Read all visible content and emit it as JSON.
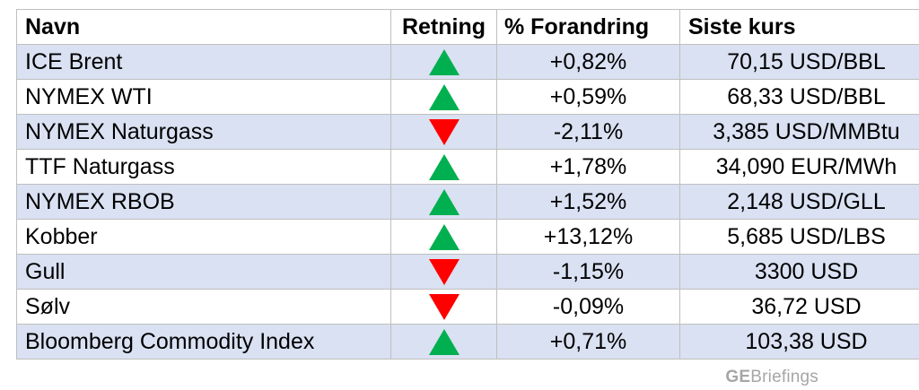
{
  "headers": {
    "name": "Navn",
    "direction": "Retning",
    "change": "% Forandring",
    "price": "Siste kurs"
  },
  "rows": [
    {
      "name": "ICE Brent",
      "direction": "up",
      "change": "+0,82%",
      "price": "70,15 USD/BBL"
    },
    {
      "name": "NYMEX WTI",
      "direction": "up",
      "change": "+0,59%",
      "price": "68,33 USD/BBL"
    },
    {
      "name": "NYMEX Naturgass",
      "direction": "down",
      "change": "-2,11%",
      "price": "3,385 USD/MMBtu"
    },
    {
      "name": "TTF Naturgass",
      "direction": "up",
      "change": "+1,78%",
      "price": "34,090 EUR/MWh"
    },
    {
      "name": "NYMEX RBOB",
      "direction": "up",
      "change": "+1,52%",
      "price": "2,148 USD/GLL"
    },
    {
      "name": "Kobber",
      "direction": "up",
      "change": "+13,12%",
      "price": "5,685 USD/LBS"
    },
    {
      "name": "Gull",
      "direction": "down",
      "change": "-1,15%",
      "price": "3300 USD"
    },
    {
      "name": "Sølv",
      "direction": "down",
      "change": "-0,09%",
      "price": "36,72 USD"
    },
    {
      "name": "Bloomberg Commodity Index",
      "direction": "up",
      "change": "+0,71%",
      "price": "103,38 USD"
    }
  ],
  "colors": {
    "band": "#d9e1f2",
    "up": "#00b050",
    "down": "#ff0000"
  },
  "watermark": {
    "prefix": "GE",
    "suffix": "Briefings"
  }
}
